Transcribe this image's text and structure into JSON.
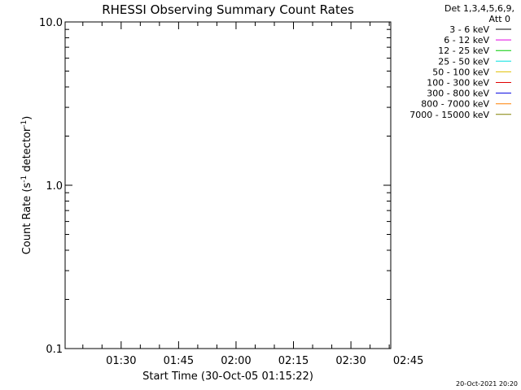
{
  "chart_data": {
    "type": "line",
    "title": "RHESSI Observing Summary Count Rates",
    "xlabel": "Start Time (30-Oct-05 01:15:22)",
    "ylabel_main": "Count Rate (s",
    "ylabel_sup1": "-1",
    "ylabel_mid": " detector",
    "ylabel_sup2": "-1",
    "ylabel_end": ")",
    "y_scale": "log",
    "ylim": [
      0.1,
      10.0
    ],
    "yticks": [
      {
        "value": 0.1,
        "label": "0.1"
      },
      {
        "value": 1.0,
        "label": "1.0"
      },
      {
        "value": 10.0,
        "label": "10.0"
      }
    ],
    "xlim_minutes_after_0100": [
      15.37,
      100.4
    ],
    "xticks": [
      {
        "minutes": 30,
        "label": "01:30"
      },
      {
        "minutes": 45,
        "label": "01:45"
      },
      {
        "minutes": 60,
        "label": "02:00"
      },
      {
        "minutes": 75,
        "label": "02:15"
      },
      {
        "minutes": 90,
        "label": "02:30"
      },
      {
        "minutes": 105,
        "label": "02:45"
      }
    ],
    "grid": false,
    "legend_placement": "top-right",
    "legend_header": [
      "Det 1,3,4,5,6,9,",
      "Att 0"
    ],
    "series": [
      {
        "name": "3 - 6 keV",
        "color": "#000000",
        "values": []
      },
      {
        "name": "6 - 12 keV",
        "color": "#e000e0",
        "values": []
      },
      {
        "name": "12 - 25 keV",
        "color": "#00cc00",
        "values": []
      },
      {
        "name": "25 - 50 keV",
        "color": "#00e0e0",
        "values": []
      },
      {
        "name": "50 - 100 keV",
        "color": "#e0c000",
        "values": []
      },
      {
        "name": "100 - 300 keV",
        "color": "#e00000",
        "values": []
      },
      {
        "name": "300 - 800 keV",
        "color": "#0000e0",
        "values": []
      },
      {
        "name": "800 - 7000 keV",
        "color": "#ff8000",
        "values": []
      },
      {
        "name": "7000 - 15000 keV",
        "color": "#808000",
        "values": []
      }
    ]
  },
  "footer": {
    "timestamp": "20-Oct-2021 20:20"
  }
}
